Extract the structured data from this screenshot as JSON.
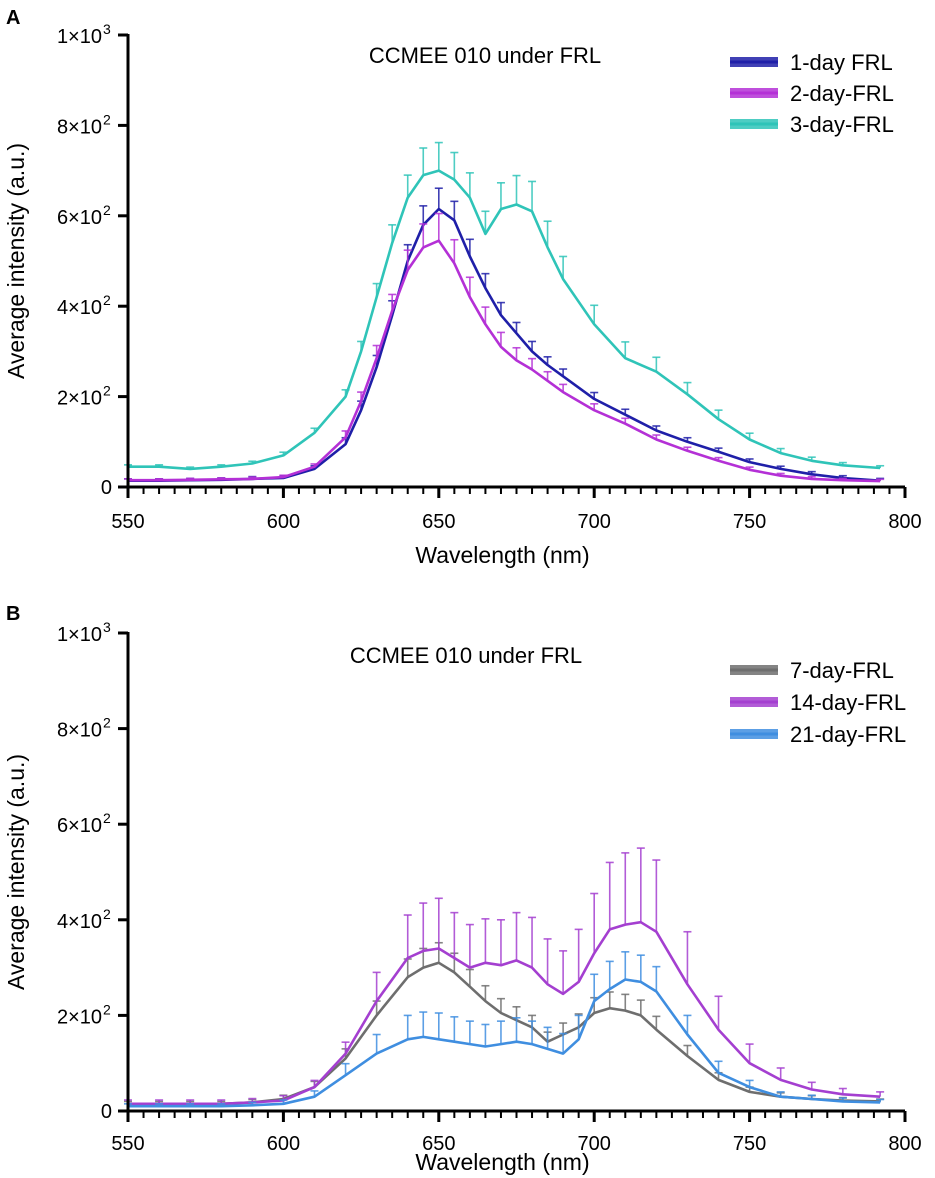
{
  "chart_data": [
    {
      "panel": "A",
      "type": "line",
      "title": "CCMEE 010 under FRL",
      "xlabel": "Wavelength (nm)",
      "ylabel": "Average intensity (a.u.)",
      "xlim": [
        550,
        800
      ],
      "ylim": [
        0,
        1000
      ],
      "xticks": [
        550,
        600,
        650,
        700,
        750,
        800
      ],
      "xtick_labels": [
        "550",
        "600",
        "650",
        "700",
        "750",
        "800"
      ],
      "yticks": [
        {
          "value": 0,
          "mantissa": "0",
          "exp": ""
        },
        {
          "value": 200,
          "mantissa": "2×10",
          "exp": "2"
        },
        {
          "value": 400,
          "mantissa": "4×10",
          "exp": "2"
        },
        {
          "value": 600,
          "mantissa": "6×10",
          "exp": "2"
        },
        {
          "value": 800,
          "mantissa": "8×10",
          "exp": "2"
        },
        {
          "value": 1000,
          "mantissa": "1×10",
          "exp": "3"
        }
      ],
      "error_bars": "upper",
      "legend_position": "top-right",
      "x": [
        550,
        560,
        570,
        580,
        590,
        600,
        610,
        620,
        625,
        630,
        635,
        640,
        645,
        650,
        655,
        660,
        665,
        670,
        675,
        680,
        685,
        690,
        700,
        710,
        720,
        730,
        740,
        750,
        760,
        770,
        780,
        792
      ],
      "series": [
        {
          "name": "1-day FRL",
          "color": "#1f1fa8",
          "values": [
            14,
            14,
            15,
            16,
            18,
            20,
            40,
            95,
            170,
            265,
            380,
            500,
            580,
            615,
            590,
            510,
            440,
            380,
            340,
            300,
            270,
            245,
            195,
            160,
            125,
            100,
            78,
            55,
            40,
            28,
            20,
            14
          ],
          "errors": [
            4,
            4,
            4,
            4,
            5,
            5,
            7,
            14,
            20,
            26,
            32,
            36,
            42,
            46,
            42,
            38,
            32,
            28,
            24,
            22,
            18,
            16,
            14,
            12,
            10,
            9,
            8,
            7,
            6,
            6,
            5,
            5
          ]
        },
        {
          "name": "2-day-FRL",
          "color": "#b430d6",
          "values": [
            15,
            15,
            16,
            17,
            18,
            22,
            45,
            110,
            190,
            285,
            390,
            480,
            530,
            545,
            495,
            420,
            360,
            310,
            280,
            260,
            235,
            210,
            170,
            140,
            105,
            80,
            58,
            38,
            25,
            18,
            15,
            13
          ],
          "errors": [
            3,
            3,
            3,
            3,
            4,
            4,
            6,
            14,
            20,
            28,
            36,
            44,
            52,
            60,
            52,
            44,
            38,
            32,
            28,
            24,
            20,
            17,
            14,
            12,
            10,
            8,
            7,
            6,
            5,
            5,
            4,
            4
          ]
        },
        {
          "name": "3-day-FRL",
          "color": "#2fc4b8",
          "values": [
            45,
            45,
            40,
            45,
            52,
            70,
            120,
            200,
            300,
            420,
            540,
            640,
            690,
            700,
            680,
            640,
            560,
            615,
            625,
            610,
            530,
            460,
            360,
            285,
            255,
            205,
            150,
            105,
            75,
            58,
            48,
            42
          ],
          "errors": [
            4,
            4,
            4,
            4,
            5,
            7,
            10,
            15,
            22,
            30,
            40,
            50,
            60,
            62,
            60,
            55,
            50,
            58,
            64,
            66,
            58,
            50,
            42,
            36,
            32,
            26,
            20,
            14,
            10,
            8,
            6,
            5
          ]
        }
      ]
    },
    {
      "panel": "B",
      "type": "line",
      "title": "CCMEE 010 under FRL",
      "xlabel": "Wavelength (nm)",
      "ylabel": "Average intensity (a.u.)",
      "xlim": [
        550,
        800
      ],
      "ylim": [
        0,
        1000
      ],
      "xticks": [
        550,
        600,
        650,
        700,
        750,
        800
      ],
      "xtick_labels": [
        "550",
        "600",
        "650",
        "700",
        "750",
        "800"
      ],
      "yticks": [
        {
          "value": 0,
          "mantissa": "0",
          "exp": ""
        },
        {
          "value": 200,
          "mantissa": "2×10",
          "exp": "2"
        },
        {
          "value": 400,
          "mantissa": "4×10",
          "exp": "2"
        },
        {
          "value": 600,
          "mantissa": "6×10",
          "exp": "2"
        },
        {
          "value": 800,
          "mantissa": "8×10",
          "exp": "2"
        },
        {
          "value": 1000,
          "mantissa": "1×10",
          "exp": "3"
        }
      ],
      "error_bars": "upper",
      "legend_position": "top-right",
      "x": [
        550,
        560,
        570,
        580,
        590,
        600,
        610,
        620,
        630,
        640,
        645,
        650,
        655,
        660,
        665,
        670,
        675,
        680,
        685,
        690,
        695,
        700,
        705,
        710,
        715,
        720,
        730,
        740,
        750,
        760,
        770,
        780,
        792
      ],
      "series": [
        {
          "name": "7-day-FRL",
          "color": "#6e6e6e",
          "values": [
            15,
            15,
            15,
            15,
            18,
            25,
            50,
            110,
            200,
            280,
            300,
            310,
            290,
            260,
            230,
            205,
            190,
            175,
            145,
            160,
            175,
            205,
            215,
            210,
            200,
            170,
            115,
            65,
            40,
            30,
            25,
            22,
            20
          ],
          "errors": [
            5,
            5,
            5,
            5,
            6,
            8,
            12,
            20,
            30,
            38,
            40,
            42,
            40,
            36,
            32,
            30,
            28,
            25,
            20,
            24,
            28,
            32,
            34,
            34,
            32,
            28,
            22,
            15,
            10,
            8,
            7,
            6,
            5
          ]
        },
        {
          "name": "14-day-FRL",
          "color": "#a43fd0",
          "values": [
            15,
            15,
            15,
            15,
            18,
            22,
            50,
            120,
            230,
            320,
            335,
            340,
            320,
            300,
            310,
            305,
            315,
            300,
            265,
            245,
            270,
            330,
            380,
            390,
            395,
            375,
            265,
            170,
            100,
            65,
            45,
            35,
            30
          ],
          "errors": [
            8,
            8,
            8,
            8,
            8,
            10,
            14,
            24,
            60,
            90,
            100,
            105,
            95,
            90,
            92,
            95,
            100,
            105,
            95,
            90,
            110,
            125,
            140,
            150,
            155,
            150,
            110,
            70,
            40,
            25,
            15,
            12,
            10
          ]
        },
        {
          "name": "21-day-FRL",
          "color": "#3f8ee0",
          "values": [
            10,
            10,
            10,
            10,
            12,
            15,
            30,
            75,
            120,
            150,
            155,
            150,
            145,
            140,
            135,
            140,
            145,
            140,
            130,
            120,
            150,
            230,
            255,
            275,
            270,
            250,
            160,
            80,
            50,
            30,
            25,
            20,
            18
          ],
          "errors": [
            5,
            5,
            5,
            5,
            6,
            8,
            12,
            24,
            40,
            50,
            52,
            55,
            52,
            48,
            46,
            48,
            50,
            48,
            45,
            42,
            50,
            56,
            58,
            58,
            56,
            52,
            40,
            24,
            14,
            10,
            8,
            7,
            6
          ]
        }
      ]
    }
  ]
}
